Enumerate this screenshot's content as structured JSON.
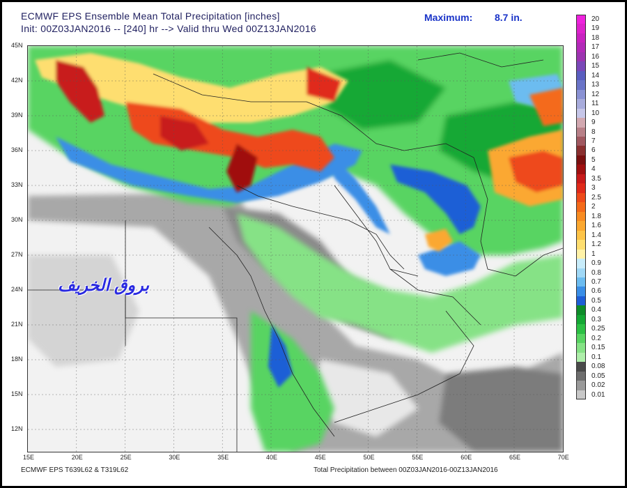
{
  "header": {
    "line1": "ECMWF EPS Ensemble Mean Total Precipitation [inches]",
    "line2": "Init: 00Z03JAN2016 -- [240] hr --> Valid thru Wed 00Z13JAN2016",
    "maximum_label": "Maximum:",
    "maximum_value": "8.7 in."
  },
  "watermark": "بروق الخريف",
  "lat_labels": [
    "45N",
    "42N",
    "39N",
    "36N",
    "33N",
    "30N",
    "27N",
    "24N",
    "21N",
    "18N",
    "15N",
    "12N"
  ],
  "lon_labels": [
    "15E",
    "20E",
    "25E",
    "30E",
    "35E",
    "40E",
    "45E",
    "50E",
    "55E",
    "60E",
    "65E",
    "70E"
  ],
  "footer": {
    "left": "ECMWF EPS T639L62 & T319L62",
    "right": "Total Precipitation between 00Z03JAN2016-00Z13JAN2016"
  },
  "legend": [
    {
      "label": "20",
      "color": "#ee22dd"
    },
    {
      "label": "19",
      "color": "#dd22cc"
    },
    {
      "label": "18",
      "color": "#c822c0"
    },
    {
      "label": "17",
      "color": "#b22ab8"
    },
    {
      "label": "16",
      "color": "#9c34b0"
    },
    {
      "label": "15",
      "color": "#7a48b8"
    },
    {
      "label": "14",
      "color": "#5a5ec0"
    },
    {
      "label": "13",
      "color": "#6a74c8"
    },
    {
      "label": "12",
      "color": "#8a92d4"
    },
    {
      "label": "11",
      "color": "#a8acdc"
    },
    {
      "label": "10",
      "color": "#c6c6e8"
    },
    {
      "label": "9",
      "color": "#d2a8b0"
    },
    {
      "label": "8",
      "color": "#b88088"
    },
    {
      "label": "7",
      "color": "#a05860"
    },
    {
      "label": "6",
      "color": "#8a3030"
    },
    {
      "label": "5",
      "color": "#7a1010"
    },
    {
      "label": "4",
      "color": "#a01010"
    },
    {
      "label": "3.5",
      "color": "#c81a1a"
    },
    {
      "label": "3",
      "color": "#e02a1a"
    },
    {
      "label": "2.5",
      "color": "#ee4a1a"
    },
    {
      "label": "2",
      "color": "#f46a1a"
    },
    {
      "label": "1.8",
      "color": "#f88c22"
    },
    {
      "label": "1.6",
      "color": "#fba830"
    },
    {
      "label": "1.4",
      "color": "#fdc448"
    },
    {
      "label": "1.2",
      "color": "#fede70"
    },
    {
      "label": "1",
      "color": "#fff2a8"
    },
    {
      "label": "0.9",
      "color": "#c8ecfa"
    },
    {
      "label": "0.8",
      "color": "#a0d8f6"
    },
    {
      "label": "0.7",
      "color": "#6cbcf0"
    },
    {
      "label": "0.6",
      "color": "#3a8ee6"
    },
    {
      "label": "0.5",
      "color": "#1e5ed6"
    },
    {
      "label": "0.4",
      "color": "#0e8c2a"
    },
    {
      "label": "0.3",
      "color": "#14a834"
    },
    {
      "label": "0.25",
      "color": "#2cc044"
    },
    {
      "label": "0.2",
      "color": "#58d462"
    },
    {
      "label": "0.15",
      "color": "#86e286"
    },
    {
      "label": "0.1",
      "color": "#aeeeaa"
    },
    {
      "label": "0.08",
      "color": "#4a4a4a"
    },
    {
      "label": "0.05",
      "color": "#6e6e6e"
    },
    {
      "label": "0.02",
      "color": "#9a9a9a"
    },
    {
      "label": "0.01",
      "color": "#c8c8c8"
    }
  ]
}
